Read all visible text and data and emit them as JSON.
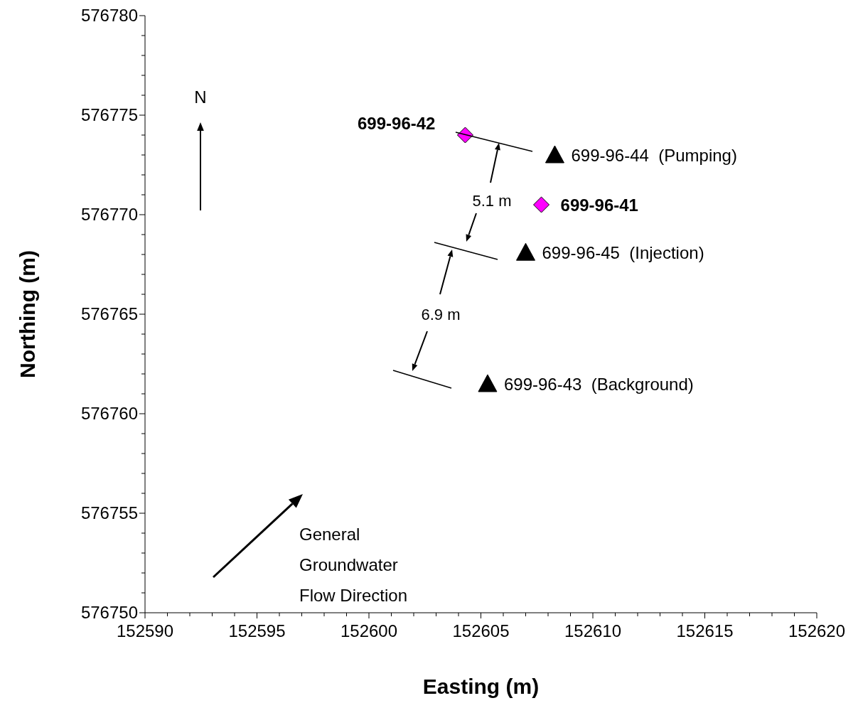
{
  "chart_data": {
    "type": "scatter",
    "xlabel": "Easting (m)",
    "ylabel": "Northing (m)",
    "xlim": [
      152590,
      152620
    ],
    "ylim": [
      576750,
      576780
    ],
    "xticks": [
      152590,
      {
        "value": 152591,
        "label": null
      },
      {
        "value": 152592,
        "label": null
      },
      {
        "value": 152593,
        "label": null
      },
      {
        "value": 152594,
        "label": null
      },
      152595,
      {
        "value": 152596,
        "label": null
      },
      {
        "value": 152597,
        "label": null
      },
      {
        "value": 152598,
        "label": null
      },
      {
        "value": 152599,
        "label": null
      },
      152600,
      {
        "value": 152601,
        "label": null
      },
      {
        "value": 152602,
        "label": null
      },
      {
        "value": 152603,
        "label": null
      },
      {
        "value": 152604,
        "label": null
      },
      152605,
      {
        "value": 152606,
        "label": null
      },
      {
        "value": 152607,
        "label": null
      },
      {
        "value": 152608,
        "label": null
      },
      {
        "value": 152609,
        "label": null
      },
      152610,
      {
        "value": 152611,
        "label": null
      },
      {
        "value": 152612,
        "label": null
      },
      {
        "value": 152613,
        "label": null
      },
      {
        "value": 152614,
        "label": null
      },
      152615,
      {
        "value": 152616,
        "label": null
      },
      {
        "value": 152617,
        "label": null
      },
      {
        "value": 152618,
        "label": null
      },
      {
        "value": 152619,
        "label": null
      },
      152620
    ],
    "yticks": [
      576750,
      {
        "value": 576751,
        "label": null
      },
      {
        "value": 576752,
        "label": null
      },
      {
        "value": 576753,
        "label": null
      },
      {
        "value": 576754,
        "label": null
      },
      576755,
      {
        "value": 576756,
        "label": null
      },
      {
        "value": 576757,
        "label": null
      },
      {
        "value": 576758,
        "label": null
      },
      {
        "value": 576759,
        "label": null
      },
      576760,
      {
        "value": 576761,
        "label": null
      },
      {
        "value": 576762,
        "label": null
      },
      {
        "value": 576763,
        "label": null
      },
      {
        "value": 576764,
        "label": null
      },
      576765,
      {
        "value": 576766,
        "label": null
      },
      {
        "value": 576767,
        "label": null
      },
      {
        "value": 576768,
        "label": null
      },
      {
        "value": 576769,
        "label": null
      },
      576770,
      {
        "value": 576771,
        "label": null
      },
      {
        "value": 576772,
        "label": null
      },
      {
        "value": 576773,
        "label": null
      },
      {
        "value": 576774,
        "label": null
      },
      576775,
      {
        "value": 576776,
        "label": null
      },
      {
        "value": 576777,
        "label": null
      },
      {
        "value": 576778,
        "label": null
      },
      {
        "value": 576779,
        "label": null
      },
      576780
    ],
    "series": [
      {
        "marker": "diamond",
        "color": "#ff00ff",
        "x": [
          152604.3,
          152607.7
        ],
        "values": [
          576774.0,
          576770.5
        ],
        "value_labels": [
          "699-96-42",
          "699-96-41"
        ]
      },
      {
        "marker": "triangle",
        "color": "#000000",
        "x": [
          152608.3,
          152607.0,
          152605.3
        ],
        "values": [
          576773.0,
          576768.1,
          576761.5
        ],
        "value_labels": [
          "699-96-44  (Pumping)",
          "699-96-45  (Injection)",
          "699-96-43  (Background)"
        ]
      }
    ],
    "annotations": [
      "N",
      "5.1 m",
      "6.9 m",
      "General Groundwater Flow Direction"
    ]
  }
}
